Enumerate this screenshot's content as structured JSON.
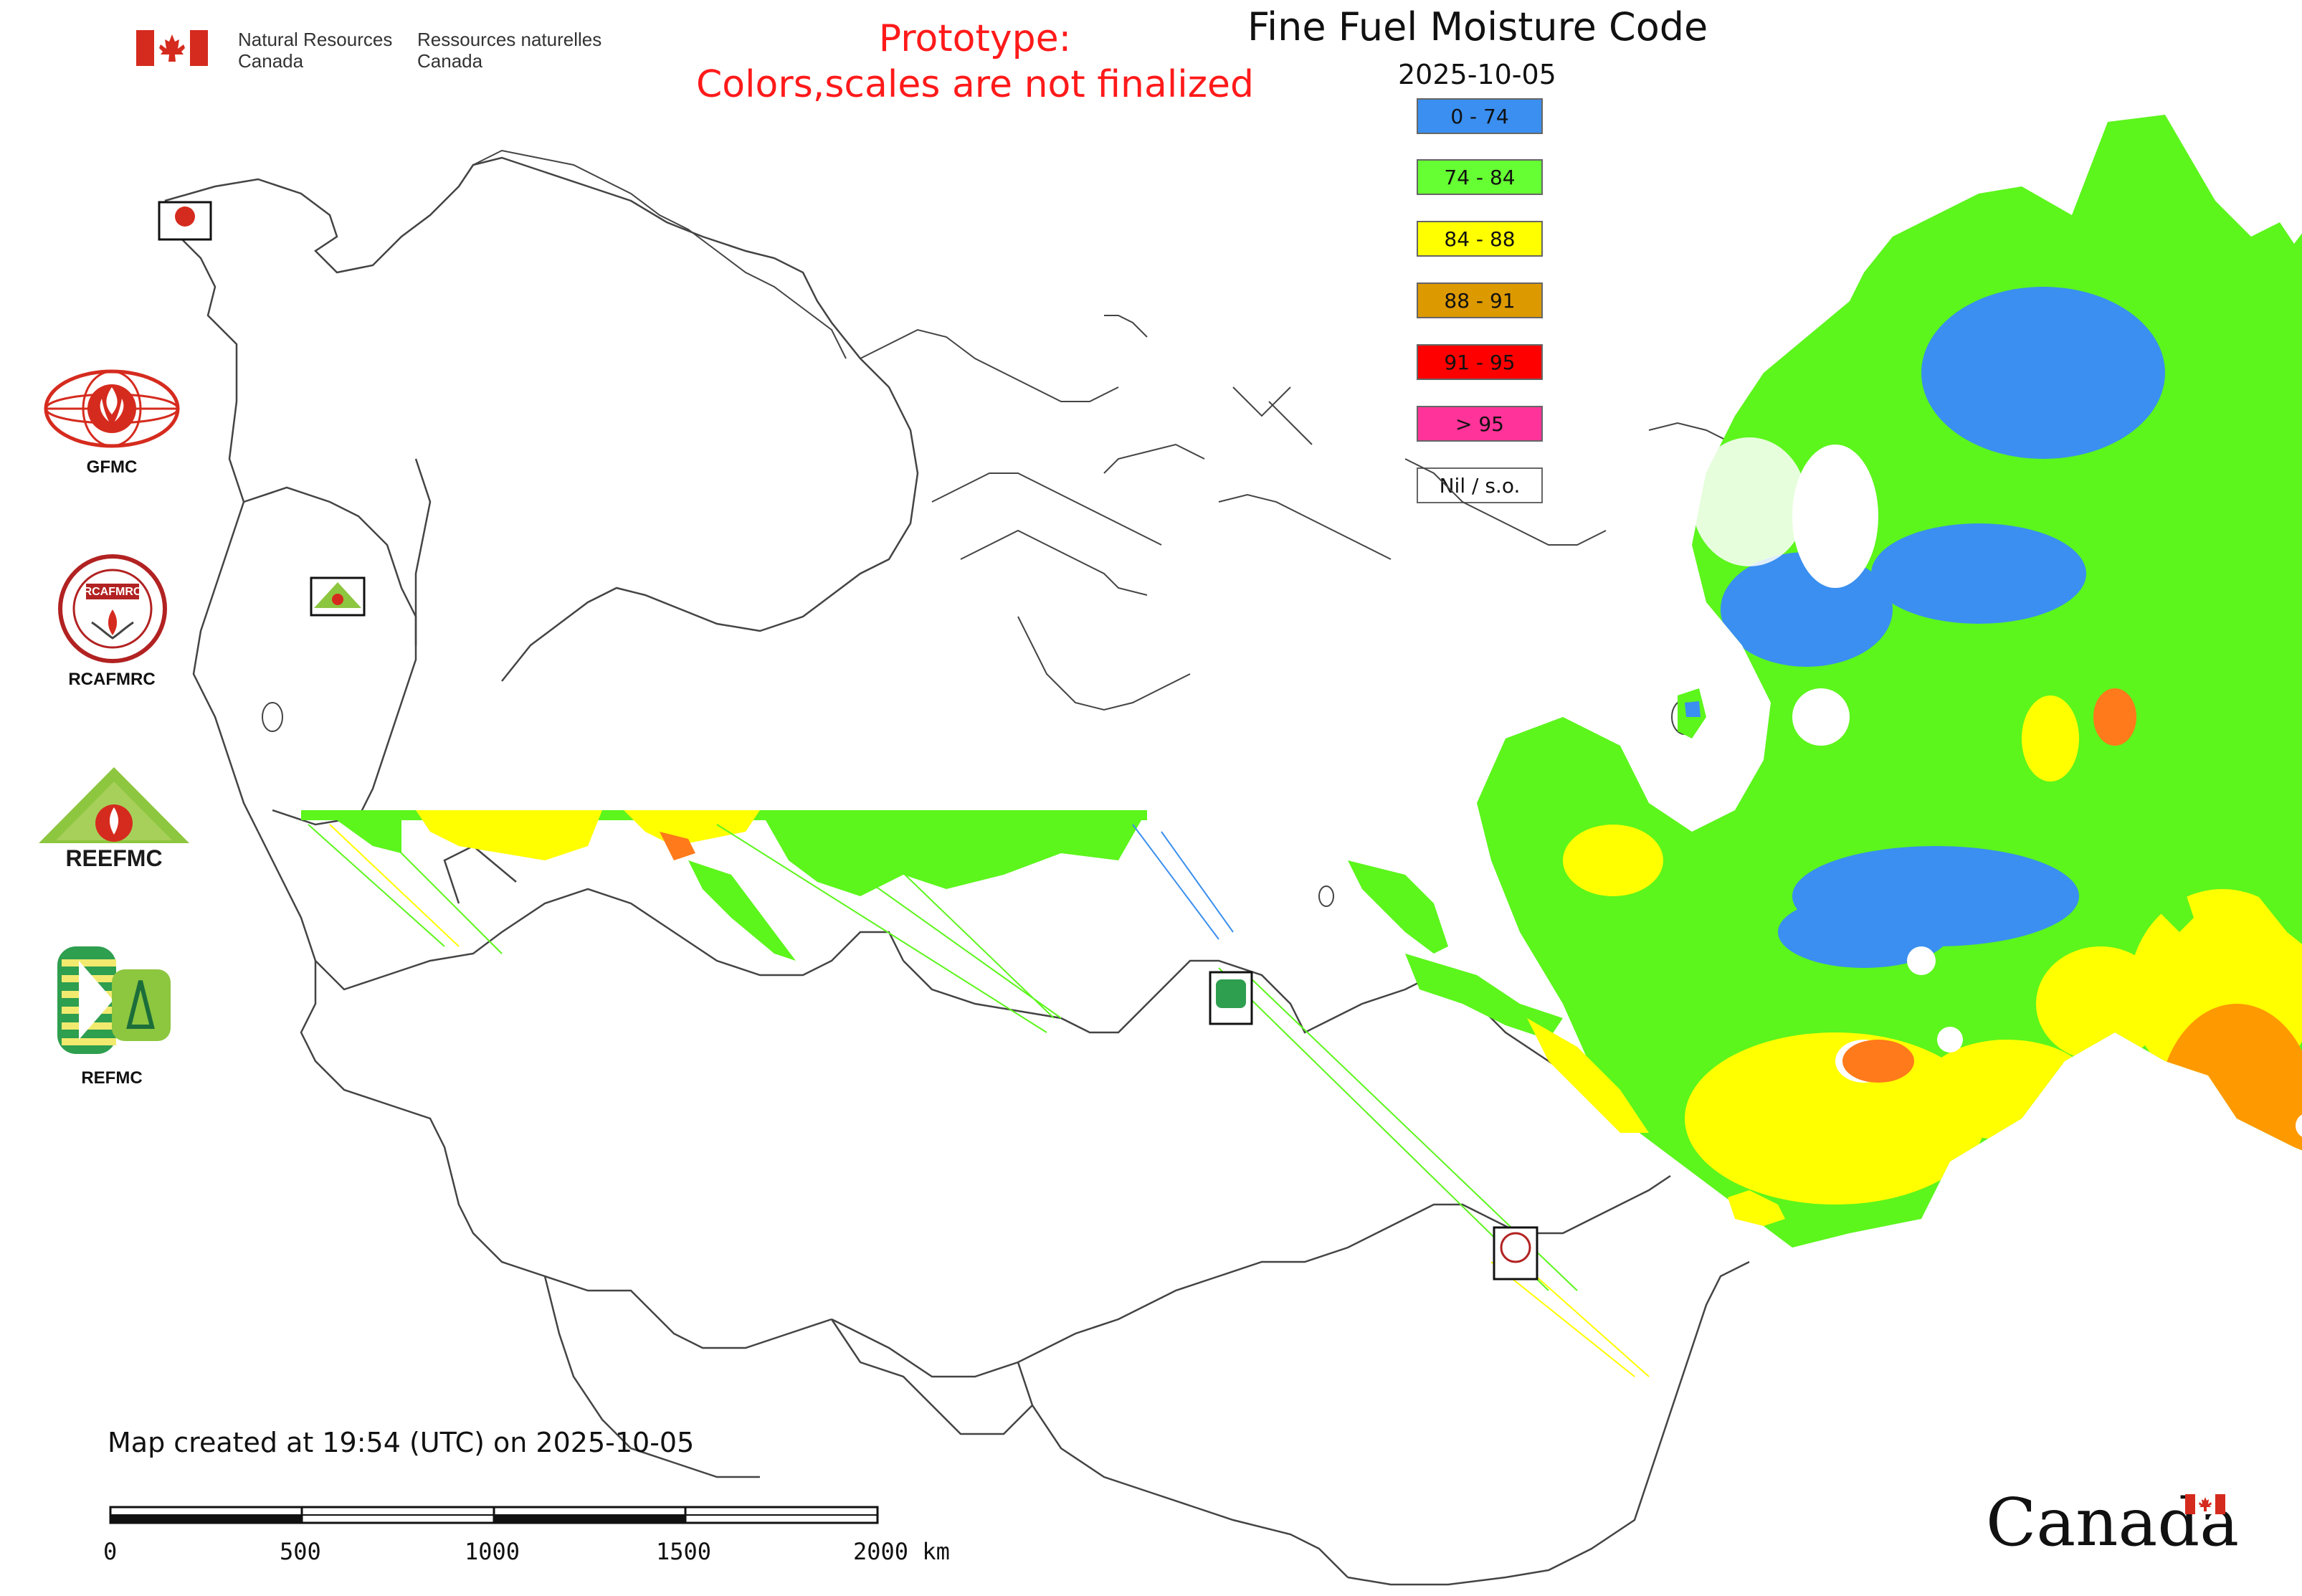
{
  "header": {
    "nrcan_en_line1": "Natural Resources",
    "nrcan_en_line2": "Canada",
    "nrcan_fr_line1": "Ressources naturelles",
    "nrcan_fr_line2": "Canada",
    "prototype_line1": "Prototype:",
    "prototype_line2": "Colors,scales are not finalized",
    "title": "Fine Fuel Moisture Code",
    "date": "2025-10-05"
  },
  "legend": [
    {
      "label": "0 - 74",
      "color": "#3a8ff0"
    },
    {
      "label": "74 - 84",
      "color": "#66ff33"
    },
    {
      "label": "84 - 88",
      "color": "#ffff00"
    },
    {
      "label": "88 - 91",
      "color": "#dd9900"
    },
    {
      "label": "91 - 95",
      "color": "#ff0000"
    },
    {
      "label": "> 95",
      "color": "#ff3399"
    },
    {
      "label": "Nil / s.o.",
      "color": "#ffffff"
    }
  ],
  "side_logos": [
    {
      "name": "GFMC",
      "icon": "gfmc-logo"
    },
    {
      "name": "RCAFMRC",
      "icon": "rcafmrc-logo"
    },
    {
      "name": "",
      "icon": "reefmc-logo",
      "logo_text": "REEFMC"
    },
    {
      "name": "REFMC",
      "icon": "refmc-logo"
    }
  ],
  "footer": {
    "created": "Map created at 19:54 (UTC) on 2025-10-05",
    "scale_ticks": [
      "0",
      "500",
      "1000",
      "1500",
      "2000 km"
    ],
    "wordmark": "Canada"
  },
  "colors": {
    "accent_red": "#ff1a1a",
    "flag_red": "#d52b1e",
    "border_line": "#444444"
  }
}
